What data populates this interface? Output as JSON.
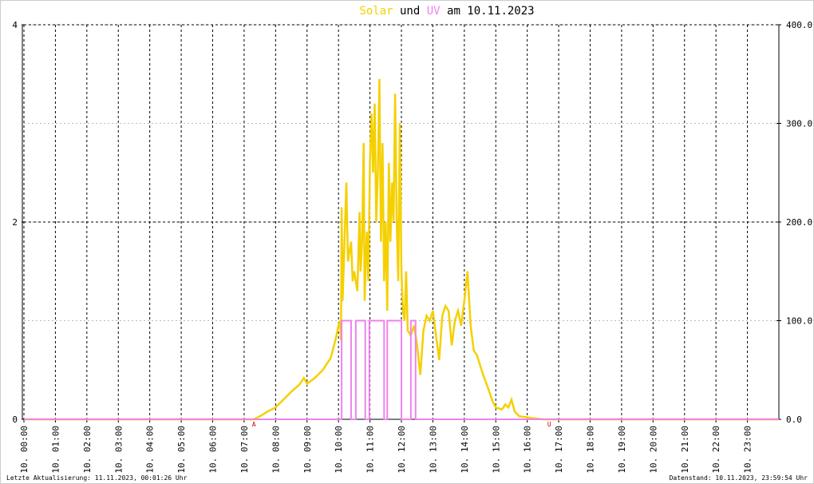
{
  "chart_data": {
    "type": "line",
    "title_parts": [
      "und",
      "am 10.11.2023"
    ],
    "xlim": [
      0,
      24
    ],
    "xticks": [
      {
        "value": 0,
        "label": "10. 00:00"
      },
      {
        "value": 1,
        "label": "10. 01:00"
      },
      {
        "value": 2,
        "label": "10. 02:00"
      },
      {
        "value": 3,
        "label": "10. 03:00"
      },
      {
        "value": 4,
        "label": "10. 04:00"
      },
      {
        "value": 5,
        "label": "10. 05:00"
      },
      {
        "value": 6,
        "label": "10. 06:00"
      },
      {
        "value": 7,
        "label": "10. 07:00"
      },
      {
        "value": 8,
        "label": "10. 08:00"
      },
      {
        "value": 9,
        "label": "10. 09:00"
      },
      {
        "value": 10,
        "label": "10. 10:00"
      },
      {
        "value": 11,
        "label": "10. 11:00"
      },
      {
        "value": 12,
        "label": "10. 12:00"
      },
      {
        "value": 13,
        "label": "10. 13:00"
      },
      {
        "value": 14,
        "label": "10. 14:00"
      },
      {
        "value": 15,
        "label": "10. 15:00"
      },
      {
        "value": 16,
        "label": "10. 16:00"
      },
      {
        "value": 17,
        "label": "10. 17:00"
      },
      {
        "value": 18,
        "label": "10. 18:00"
      },
      {
        "value": 19,
        "label": "10. 19:00"
      },
      {
        "value": 20,
        "label": "10. 20:00"
      },
      {
        "value": 21,
        "label": "10. 21:00"
      },
      {
        "value": 22,
        "label": "10. 22:00"
      },
      {
        "value": 23,
        "label": "10. 23:00"
      }
    ],
    "ylim": [
      0,
      4
    ],
    "yticks": [
      0,
      2,
      4
    ],
    "y2lim": [
      0,
      400
    ],
    "y2ticks": [
      {
        "value": 0,
        "label": "0.0"
      },
      {
        "value": 100,
        "label": "100.0"
      },
      {
        "value": 200,
        "label": "200.0"
      },
      {
        "value": 300,
        "label": "300.0"
      },
      {
        "value": 400,
        "label": "400.0"
      }
    ],
    "grid": true,
    "series": [
      {
        "name": "Solar",
        "color": "#f5d000",
        "axis": "y2",
        "x": [
          0,
          7.3,
          7.5,
          7.75,
          8.0,
          8.25,
          8.5,
          8.75,
          8.9,
          9.0,
          9.25,
          9.5,
          9.75,
          9.9,
          10.0,
          10.05,
          10.08,
          10.1,
          10.13,
          10.17,
          10.25,
          10.3,
          10.4,
          10.45,
          10.5,
          10.6,
          10.67,
          10.7,
          10.75,
          10.8,
          10.83,
          10.9,
          10.95,
          11.0,
          11.05,
          11.1,
          11.15,
          11.2,
          11.25,
          11.3,
          11.35,
          11.4,
          11.45,
          11.5,
          11.55,
          11.6,
          11.65,
          11.7,
          11.75,
          11.8,
          11.85,
          11.9,
          11.95,
          12.0,
          12.05,
          12.1,
          12.15,
          12.2,
          12.3,
          12.4,
          12.5,
          12.6,
          12.7,
          12.8,
          12.9,
          13.0,
          13.1,
          13.2,
          13.3,
          13.4,
          13.5,
          13.6,
          13.7,
          13.8,
          13.9,
          14.0,
          14.1,
          14.2,
          14.3,
          14.4,
          14.5,
          14.6,
          14.75,
          14.9,
          15.0,
          15.2,
          15.3,
          15.4,
          15.5,
          15.6,
          15.75,
          16.0,
          16.2,
          16.5,
          24
        ],
        "values": [
          0,
          0,
          3,
          8,
          12,
          20,
          28,
          35,
          42,
          36,
          42,
          50,
          62,
          80,
          95,
          100,
          80,
          215,
          120,
          160,
          240,
          160,
          180,
          140,
          150,
          130,
          210,
          150,
          180,
          280,
          120,
          190,
          140,
          260,
          310,
          250,
          320,
          200,
          250,
          345,
          180,
          280,
          140,
          200,
          110,
          260,
          180,
          240,
          200,
          330,
          200,
          140,
          300,
          150,
          110,
          100,
          150,
          90,
          85,
          95,
          75,
          45,
          90,
          105,
          100,
          110,
          85,
          60,
          105,
          115,
          110,
          75,
          100,
          110,
          95,
          120,
          150,
          95,
          70,
          65,
          55,
          45,
          32,
          18,
          12,
          10,
          15,
          12,
          20,
          8,
          3,
          2,
          1,
          0,
          0
        ]
      },
      {
        "name": "UV",
        "color": "#ee82ee",
        "axis": "y",
        "x": [
          0,
          10.1,
          10.1,
          10.4,
          10.4,
          10.55,
          10.55,
          10.85,
          10.85,
          10.98,
          10.98,
          11.45,
          11.45,
          11.55,
          11.55,
          12.0,
          12.0,
          12.3,
          12.3,
          12.45,
          12.45,
          24
        ],
        "values": [
          0,
          0,
          1,
          1,
          0,
          0,
          1,
          1,
          0,
          0,
          1,
          1,
          0,
          0,
          1,
          1,
          0,
          0,
          1,
          1,
          0,
          0
        ]
      }
    ],
    "annotations": [
      {
        "text": "A",
        "x": 7.31
      },
      {
        "text": "U",
        "x": 16.7
      }
    ],
    "footer_left": "Letzte Aktualisierung: 11.11.2023, 00:01:26 Uhr",
    "footer_right": "Datenstand: 10.11.2023, 23:59:54 Uhr"
  }
}
